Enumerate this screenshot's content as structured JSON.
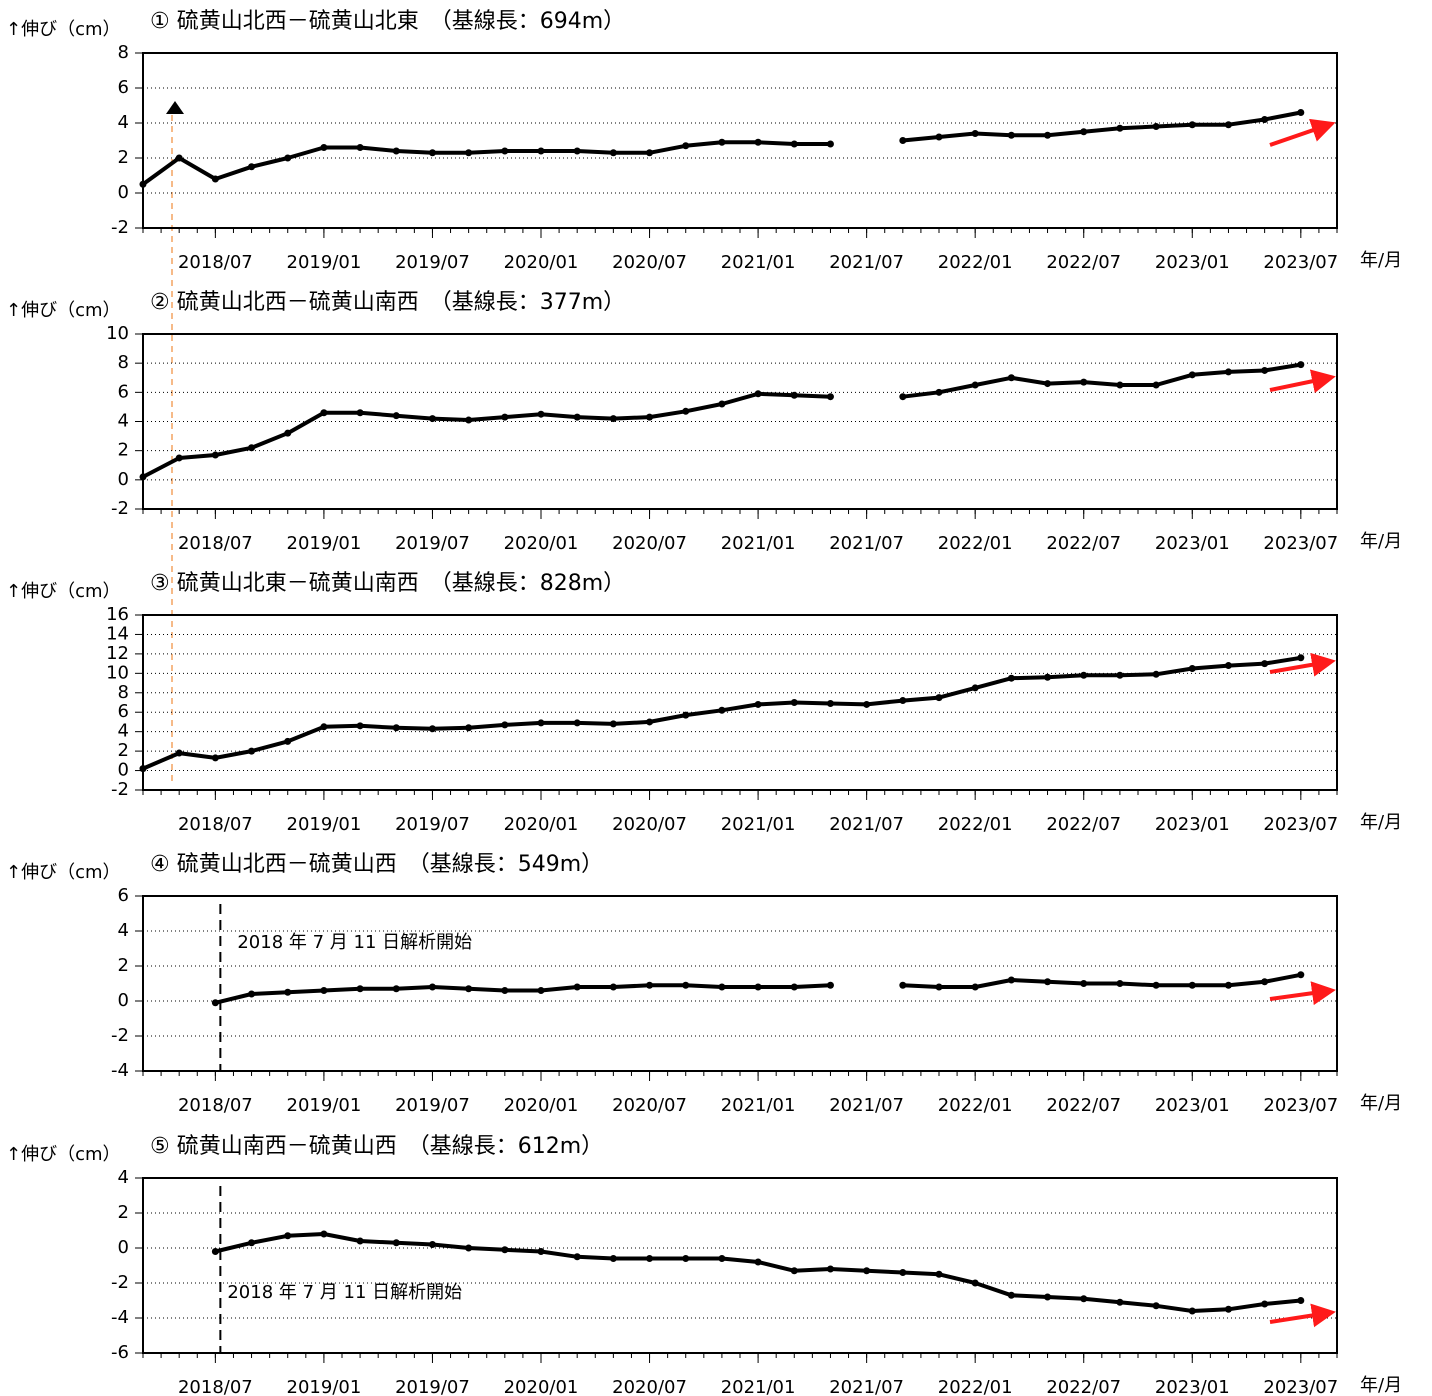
{
  "chart_data": [
    {
      "type": "scatter",
      "title": "① 硫黄山北西－硫黄山北東　（基線長：694m）",
      "ylabel": "↑伸び（cm）",
      "xlabel": "年/月",
      "xlim": [
        "2018/03",
        "2023/09"
      ],
      "xticks": [
        "2018/07",
        "2019/01",
        "2019/07",
        "2020/01",
        "2020/07",
        "2021/01",
        "2021/07",
        "2022/01",
        "2022/07",
        "2023/01",
        "2023/07"
      ],
      "ylim": [
        -2,
        8
      ],
      "yticks": [
        -2,
        0,
        2,
        4,
        6,
        8
      ],
      "grid": true,
      "color": "#000000",
      "x": [
        "2018/03",
        "2018/05",
        "2018/07",
        "2018/09",
        "2018/11",
        "2019/01",
        "2019/03",
        "2019/05",
        "2019/07",
        "2019/09",
        "2019/11",
        "2020/01",
        "2020/03",
        "2020/05",
        "2020/07",
        "2020/09",
        "2020/11",
        "2021/01",
        "2021/03",
        "2021/05",
        "2021/07",
        "2021/09",
        "2021/11",
        "2022/01",
        "2022/03",
        "2022/05",
        "2022/07",
        "2022/09",
        "2022/11",
        "2023/01",
        "2023/03",
        "2023/05",
        "2023/07"
      ],
      "values": [
        0.5,
        2.0,
        0.8,
        1.5,
        2.0,
        2.6,
        2.6,
        2.4,
        2.3,
        2.3,
        2.4,
        2.4,
        2.4,
        2.3,
        2.3,
        2.7,
        2.9,
        2.9,
        2.8,
        2.8,
        null,
        3.0,
        3.2,
        3.4,
        3.3,
        3.3,
        3.5,
        3.7,
        3.8,
        3.9,
        3.9,
        4.2,
        4.6
      ]
    },
    {
      "type": "scatter",
      "title": "② 硫黄山北西－硫黄山南西　（基線長：377m）",
      "ylabel": "↑伸び（cm）",
      "xlabel": "年/月",
      "xlim": [
        "2018/03",
        "2023/09"
      ],
      "xticks": [
        "2018/07",
        "2019/01",
        "2019/07",
        "2020/01",
        "2020/07",
        "2021/01",
        "2021/07",
        "2022/01",
        "2022/07",
        "2023/01",
        "2023/07"
      ],
      "ylim": [
        -2,
        10
      ],
      "yticks": [
        -2,
        0,
        2,
        4,
        6,
        8,
        10
      ],
      "grid": true,
      "color": "#000000",
      "x": [
        "2018/03",
        "2018/05",
        "2018/07",
        "2018/09",
        "2018/11",
        "2019/01",
        "2019/03",
        "2019/05",
        "2019/07",
        "2019/09",
        "2019/11",
        "2020/01",
        "2020/03",
        "2020/05",
        "2020/07",
        "2020/09",
        "2020/11",
        "2021/01",
        "2021/03",
        "2021/05",
        "2021/07",
        "2021/09",
        "2021/11",
        "2022/01",
        "2022/03",
        "2022/05",
        "2022/07",
        "2022/09",
        "2022/11",
        "2023/01",
        "2023/03",
        "2023/05",
        "2023/07"
      ],
      "values": [
        0.2,
        1.5,
        1.7,
        2.2,
        3.2,
        4.6,
        4.6,
        4.4,
        4.2,
        4.1,
        4.3,
        4.5,
        4.3,
        4.2,
        4.3,
        4.7,
        5.2,
        5.9,
        5.8,
        5.7,
        null,
        5.7,
        6.0,
        6.5,
        7.0,
        6.6,
        6.7,
        6.5,
        6.5,
        7.2,
        7.4,
        7.5,
        7.9
      ]
    },
    {
      "type": "scatter",
      "title": "③ 硫黄山北東－硫黄山南西　（基線長：828m）",
      "ylabel": "↑伸び（cm）",
      "xlabel": "年/月",
      "xlim": [
        "2018/03",
        "2023/09"
      ],
      "xticks": [
        "2018/07",
        "2019/01",
        "2019/07",
        "2020/01",
        "2020/07",
        "2021/01",
        "2021/07",
        "2022/01",
        "2022/07",
        "2023/01",
        "2023/07"
      ],
      "ylim": [
        -2,
        16
      ],
      "yticks": [
        -2,
        0,
        2,
        4,
        6,
        8,
        10,
        12,
        14,
        16
      ],
      "grid": true,
      "color": "#000000",
      "x": [
        "2018/03",
        "2018/05",
        "2018/07",
        "2018/09",
        "2018/11",
        "2019/01",
        "2019/03",
        "2019/05",
        "2019/07",
        "2019/09",
        "2019/11",
        "2020/01",
        "2020/03",
        "2020/05",
        "2020/07",
        "2020/09",
        "2020/11",
        "2021/01",
        "2021/03",
        "2021/05",
        "2021/07",
        "2021/09",
        "2021/11",
        "2022/01",
        "2022/03",
        "2022/05",
        "2022/07",
        "2022/09",
        "2022/11",
        "2023/01",
        "2023/03",
        "2023/05",
        "2023/07"
      ],
      "values": [
        0.2,
        1.8,
        1.3,
        2.0,
        3.0,
        4.5,
        4.6,
        4.4,
        4.3,
        4.4,
        4.7,
        4.9,
        4.9,
        4.8,
        5.0,
        5.7,
        6.2,
        6.8,
        7.0,
        6.9,
        6.8,
        7.2,
        7.5,
        8.5,
        9.5,
        9.6,
        9.8,
        9.8,
        9.9,
        10.5,
        10.8,
        11.0,
        11.6
      ]
    },
    {
      "type": "scatter",
      "title": "④ 硫黄山北西－硫黄山西　（基線長：549m）",
      "ylabel": "↑伸び（cm）",
      "xlabel": "年/月",
      "annotation": "2018 年 7 月 11 日解析開始",
      "xlim": [
        "2018/03",
        "2023/09"
      ],
      "xticks": [
        "2018/07",
        "2019/01",
        "2019/07",
        "2020/01",
        "2020/07",
        "2021/01",
        "2021/07",
        "2022/01",
        "2022/07",
        "2023/01",
        "2023/07"
      ],
      "ylim": [
        -4,
        6
      ],
      "yticks": [
        -4,
        -2,
        0,
        2,
        4,
        6
      ],
      "grid": true,
      "color": "#000000",
      "x": [
        "2018/03",
        "2018/05",
        "2018/07",
        "2018/09",
        "2018/11",
        "2019/01",
        "2019/03",
        "2019/05",
        "2019/07",
        "2019/09",
        "2019/11",
        "2020/01",
        "2020/03",
        "2020/05",
        "2020/07",
        "2020/09",
        "2020/11",
        "2021/01",
        "2021/03",
        "2021/05",
        "2021/07",
        "2021/09",
        "2021/11",
        "2022/01",
        "2022/03",
        "2022/05",
        "2022/07",
        "2022/09",
        "2022/11",
        "2023/01",
        "2023/03",
        "2023/05",
        "2023/07"
      ],
      "values": [
        null,
        null,
        -0.1,
        0.4,
        0.5,
        0.6,
        0.7,
        0.7,
        0.8,
        0.7,
        0.6,
        0.6,
        0.8,
        0.8,
        0.9,
        0.9,
        0.8,
        0.8,
        0.8,
        0.9,
        null,
        0.9,
        0.8,
        0.8,
        1.2,
        1.1,
        1.0,
        1.0,
        0.9,
        0.9,
        0.9,
        1.1,
        1.5
      ]
    },
    {
      "type": "scatter",
      "title": "⑤ 硫黄山南西－硫黄山西　（基線長：612m）",
      "ylabel": "↑伸び（cm）",
      "xlabel": "年/月",
      "annotation": "2018 年 7 月 11 日解析開始",
      "xlim": [
        "2018/03",
        "2023/09"
      ],
      "xticks": [
        "2018/07",
        "2019/01",
        "2019/07",
        "2020/01",
        "2020/07",
        "2021/01",
        "2021/07",
        "2022/01",
        "2022/07",
        "2023/01",
        "2023/07"
      ],
      "ylim": [
        -6,
        4
      ],
      "yticks": [
        -6,
        -4,
        -2,
        0,
        2,
        4
      ],
      "grid": true,
      "color": "#000000",
      "x": [
        "2018/03",
        "2018/05",
        "2018/07",
        "2018/09",
        "2018/11",
        "2019/01",
        "2019/03",
        "2019/05",
        "2019/07",
        "2019/09",
        "2019/11",
        "2020/01",
        "2020/03",
        "2020/05",
        "2020/07",
        "2020/09",
        "2020/11",
        "2021/01",
        "2021/03",
        "2021/05",
        "2021/07",
        "2021/09",
        "2021/11",
        "2022/01",
        "2022/03",
        "2022/05",
        "2022/07",
        "2022/09",
        "2022/11",
        "2023/01",
        "2023/03",
        "2023/05",
        "2023/07"
      ],
      "values": [
        null,
        null,
        -0.2,
        0.3,
        0.7,
        0.8,
        0.4,
        0.3,
        0.2,
        0.0,
        -0.1,
        -0.2,
        -0.5,
        -0.6,
        -0.6,
        -0.6,
        -0.6,
        -0.8,
        -1.3,
        -1.2,
        -1.3,
        -1.4,
        -1.5,
        -2.0,
        -2.7,
        -2.8,
        -2.9,
        -3.1,
        -3.3,
        -3.6,
        -3.5,
        -3.2,
        -3.0
      ]
    }
  ]
}
